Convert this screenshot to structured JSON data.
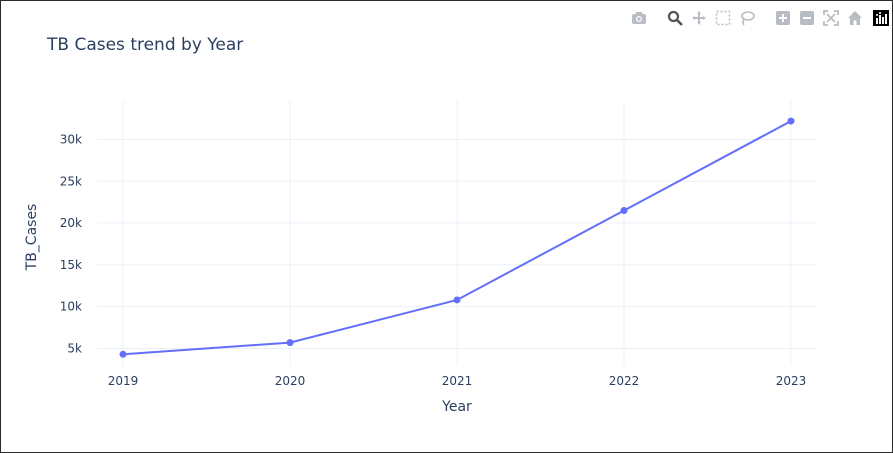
{
  "title": "TB Cases trend by Year",
  "modebar": {
    "icons": [
      "camera-icon",
      "zoom-icon",
      "pan-icon",
      "box-select-icon",
      "lasso-icon",
      "zoom-in-icon",
      "zoom-out-icon",
      "autoscale-icon",
      "home-icon",
      "plotly-logo-icon"
    ]
  },
  "colors": {
    "line": "#636efa",
    "grid": "#ebf0f8",
    "text": "#2a3f5f",
    "icon": "#b8bcc3"
  },
  "chart_data": {
    "type": "line",
    "title": "TB Cases trend by Year",
    "xlabel": "Year",
    "ylabel": "TB_Cases",
    "x": [
      "2019",
      "2020",
      "2021",
      "2022",
      "2023"
    ],
    "series": [
      {
        "values": [
          4300,
          5700,
          10800,
          21500,
          32200
        ]
      }
    ],
    "yticks": [
      5000,
      10000,
      15000,
      20000,
      25000,
      30000
    ],
    "ytick_labels": [
      "5k",
      "10k",
      "15k",
      "20k",
      "25k",
      "30k"
    ],
    "ylim": [
      2900,
      34600
    ],
    "grid": true
  }
}
